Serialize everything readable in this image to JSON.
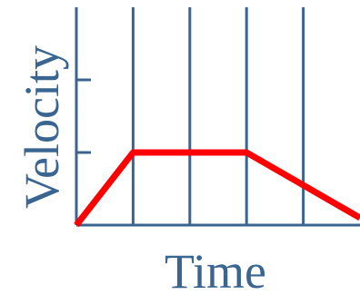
{
  "colors": {
    "axis": "#3a6591",
    "grid": "#3a6591",
    "series": "#ff0000",
    "label": "#3a6591"
  },
  "chart_data": {
    "type": "line",
    "title": "",
    "xlabel": "Time",
    "ylabel": "Velocity",
    "xlim": [
      0,
      5
    ],
    "ylim": [
      0,
      3
    ],
    "x_ticks": [
      1,
      2,
      3,
      4
    ],
    "y_ticks": [
      1,
      2
    ],
    "grid": "vertical",
    "series": [
      {
        "x": [
          0,
          1,
          2,
          3,
          4,
          5
        ],
        "y": [
          0,
          1,
          1,
          1,
          0.55,
          0.1
        ]
      }
    ]
  }
}
